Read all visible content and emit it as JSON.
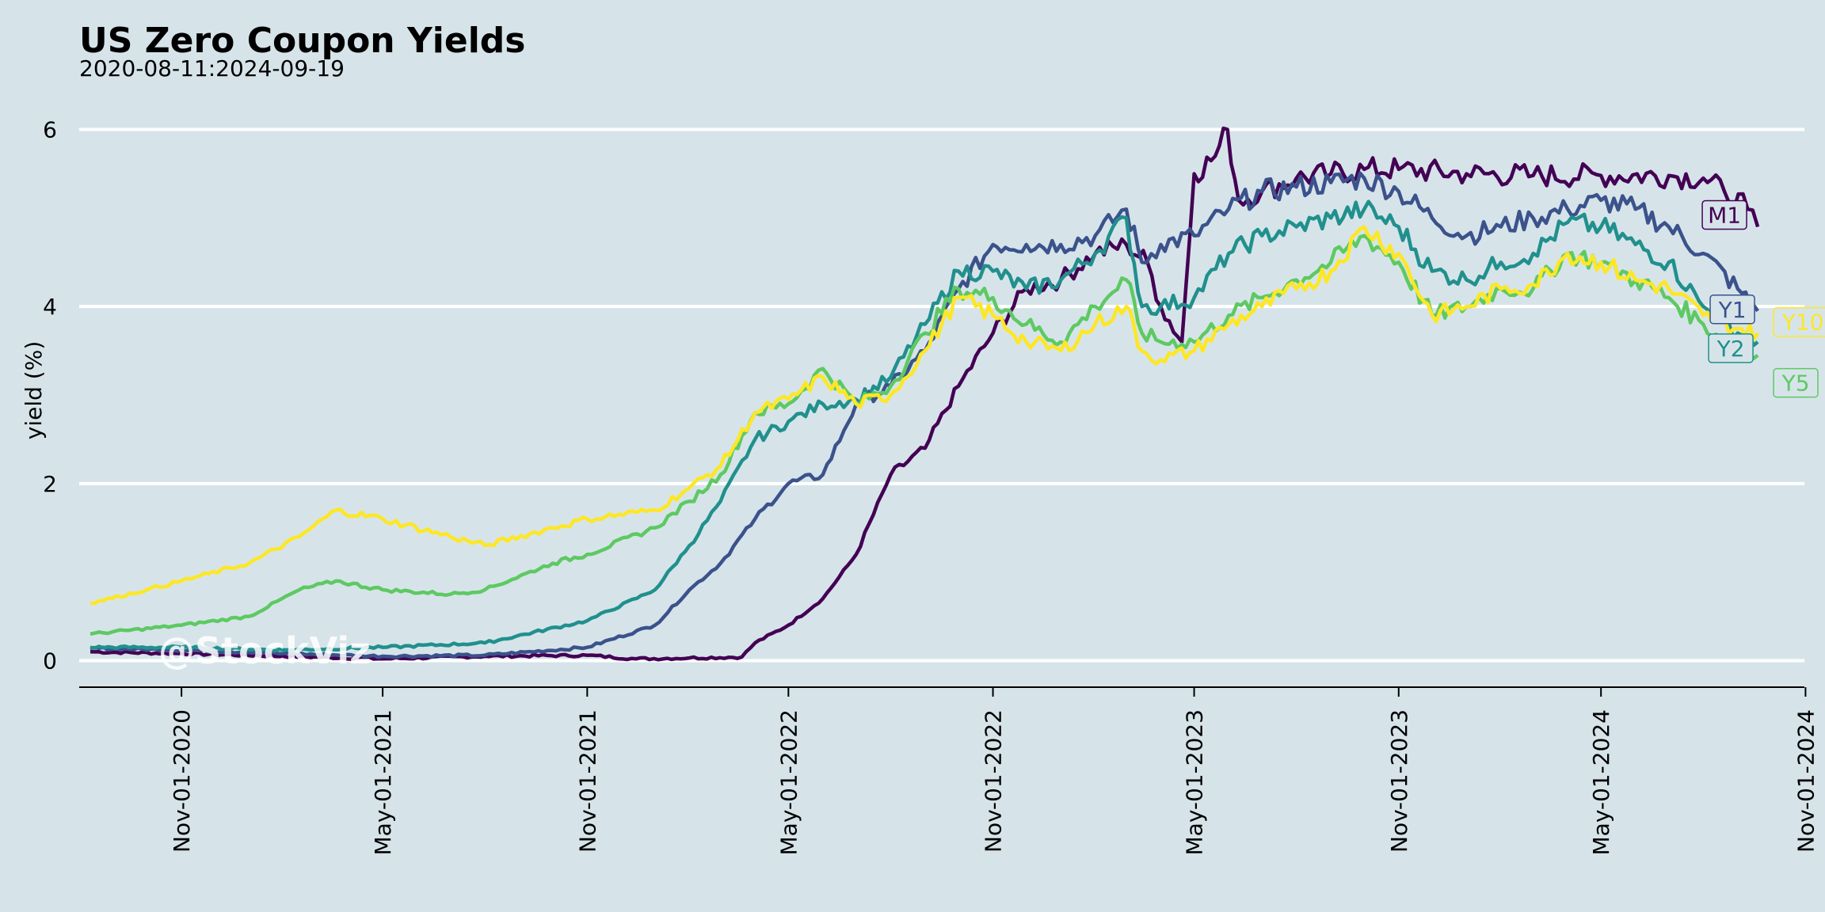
{
  "chart_data": {
    "type": "line",
    "title": "US Zero Coupon Yields",
    "subtitle": "2020-08-11:2024-09-19",
    "ylabel": "yield (%)",
    "xlabel": "",
    "ylim": [
      -0.3,
      6.3
    ],
    "xlim": [
      "2020-08-01",
      "2024-10-31"
    ],
    "grid": "horizontal",
    "watermark": "@StockViz",
    "x_ticks": [
      "Nov-01-2020",
      "May-01-2021",
      "Nov-01-2021",
      "May-01-2022",
      "Nov-01-2022",
      "May-01-2023",
      "Nov-01-2023",
      "May-01-2024",
      "Nov-01-2024"
    ],
    "y_ticks": [
      0,
      2,
      4,
      6
    ],
    "series": [
      {
        "name": "M1",
        "color": "#440154",
        "points": [
          [
            "2020-08-11",
            0.1
          ],
          [
            "2020-11-01",
            0.08
          ],
          [
            "2021-02-01",
            0.05
          ],
          [
            "2021-05-01",
            0.02
          ],
          [
            "2021-08-01",
            0.05
          ],
          [
            "2021-11-01",
            0.06
          ],
          [
            "2021-12-15",
            0.02
          ],
          [
            "2022-02-01",
            0.03
          ],
          [
            "2022-03-20",
            0.04
          ],
          [
            "2022-04-01",
            0.2
          ],
          [
            "2022-05-01",
            0.4
          ],
          [
            "2022-06-01",
            0.7
          ],
          [
            "2022-07-01",
            1.2
          ],
          [
            "2022-08-01",
            2.1
          ],
          [
            "2022-09-01",
            2.4
          ],
          [
            "2022-10-01",
            3.1
          ],
          [
            "2022-11-01",
            3.7
          ],
          [
            "2022-12-01",
            4.2
          ],
          [
            "2023-01-01",
            4.3
          ],
          [
            "2023-02-01",
            4.6
          ],
          [
            "2023-03-01",
            4.7
          ],
          [
            "2023-03-20",
            4.5
          ],
          [
            "2023-04-01",
            4.0
          ],
          [
            "2023-04-20",
            3.6
          ],
          [
            "2023-05-01",
            5.5
          ],
          [
            "2023-05-20",
            5.7
          ],
          [
            "2023-05-31",
            6.0
          ],
          [
            "2023-06-10",
            5.2
          ],
          [
            "2023-07-01",
            5.3
          ],
          [
            "2023-08-01",
            5.45
          ],
          [
            "2023-09-01",
            5.5
          ],
          [
            "2023-10-01",
            5.55
          ],
          [
            "2023-11-01",
            5.55
          ],
          [
            "2024-01-01",
            5.5
          ],
          [
            "2024-03-01",
            5.48
          ],
          [
            "2024-05-01",
            5.48
          ],
          [
            "2024-07-01",
            5.48
          ],
          [
            "2024-08-01",
            5.45
          ],
          [
            "2024-08-20",
            5.3
          ],
          [
            "2024-09-10",
            5.1
          ],
          [
            "2024-09-19",
            4.9
          ]
        ]
      },
      {
        "name": "Y1",
        "color": "#3b528b",
        "points": [
          [
            "2020-08-11",
            0.14
          ],
          [
            "2020-11-01",
            0.12
          ],
          [
            "2021-02-01",
            0.08
          ],
          [
            "2021-05-01",
            0.05
          ],
          [
            "2021-08-01",
            0.06
          ],
          [
            "2021-11-01",
            0.15
          ],
          [
            "2022-01-01",
            0.4
          ],
          [
            "2022-02-01",
            0.8
          ],
          [
            "2022-03-01",
            1.1
          ],
          [
            "2022-04-01",
            1.6
          ],
          [
            "2022-05-01",
            2.0
          ],
          [
            "2022-06-01",
            2.1
          ],
          [
            "2022-06-20",
            2.6
          ],
          [
            "2022-07-01",
            2.9
          ],
          [
            "2022-08-01",
            3.1
          ],
          [
            "2022-09-01",
            3.5
          ],
          [
            "2022-10-01",
            4.2
          ],
          [
            "2022-11-01",
            4.7
          ],
          [
            "2022-12-01",
            4.7
          ],
          [
            "2023-01-01",
            4.7
          ],
          [
            "2023-02-01",
            4.8
          ],
          [
            "2023-03-01",
            5.1
          ],
          [
            "2023-03-15",
            4.5
          ],
          [
            "2023-04-01",
            4.7
          ],
          [
            "2023-05-01",
            4.8
          ],
          [
            "2023-06-01",
            5.1
          ],
          [
            "2023-07-01",
            5.3
          ],
          [
            "2023-08-01",
            5.35
          ],
          [
            "2023-09-01",
            5.4
          ],
          [
            "2023-10-01",
            5.45
          ],
          [
            "2023-11-01",
            5.3
          ],
          [
            "2023-12-01",
            5.0
          ],
          [
            "2024-01-01",
            4.8
          ],
          [
            "2024-02-01",
            4.9
          ],
          [
            "2024-03-01",
            5.0
          ],
          [
            "2024-04-01",
            5.1
          ],
          [
            "2024-05-01",
            5.2
          ],
          [
            "2024-06-01",
            5.1
          ],
          [
            "2024-07-01",
            4.9
          ],
          [
            "2024-08-01",
            4.6
          ],
          [
            "2024-09-01",
            4.2
          ],
          [
            "2024-09-19",
            3.95
          ]
        ]
      },
      {
        "name": "Y2",
        "color": "#21908d",
        "points": [
          [
            "2020-08-11",
            0.15
          ],
          [
            "2020-11-01",
            0.15
          ],
          [
            "2021-02-01",
            0.12
          ],
          [
            "2021-05-01",
            0.15
          ],
          [
            "2021-08-01",
            0.2
          ],
          [
            "2021-11-01",
            0.45
          ],
          [
            "2022-01-01",
            0.8
          ],
          [
            "2022-02-01",
            1.3
          ],
          [
            "2022-03-01",
            1.8
          ],
          [
            "2022-04-01",
            2.5
          ],
          [
            "2022-05-01",
            2.7
          ],
          [
            "2022-06-01",
            2.9
          ],
          [
            "2022-07-01",
            2.95
          ],
          [
            "2022-08-01",
            3.2
          ],
          [
            "2022-09-01",
            3.8
          ],
          [
            "2022-10-01",
            4.4
          ],
          [
            "2022-11-01",
            4.4
          ],
          [
            "2022-12-01",
            4.2
          ],
          [
            "2023-01-01",
            4.3
          ],
          [
            "2023-02-01",
            4.6
          ],
          [
            "2023-03-01",
            5.0
          ],
          [
            "2023-03-15",
            4.0
          ],
          [
            "2023-04-01",
            4.0
          ],
          [
            "2023-05-01",
            4.1
          ],
          [
            "2023-06-01",
            4.6
          ],
          [
            "2023-07-01",
            4.8
          ],
          [
            "2023-08-01",
            4.9
          ],
          [
            "2023-09-01",
            5.0
          ],
          [
            "2023-10-01",
            5.1
          ],
          [
            "2023-11-01",
            4.9
          ],
          [
            "2023-12-01",
            4.4
          ],
          [
            "2024-01-01",
            4.3
          ],
          [
            "2024-02-01",
            4.5
          ],
          [
            "2024-03-01",
            4.6
          ],
          [
            "2024-04-01",
            4.95
          ],
          [
            "2024-05-01",
            4.9
          ],
          [
            "2024-06-01",
            4.7
          ],
          [
            "2024-07-01",
            4.5
          ],
          [
            "2024-08-01",
            4.0
          ],
          [
            "2024-09-01",
            3.7
          ],
          [
            "2024-09-19",
            3.6
          ]
        ]
      },
      {
        "name": "Y5",
        "color": "#5ec962",
        "points": [
          [
            "2020-08-11",
            0.3
          ],
          [
            "2020-11-01",
            0.4
          ],
          [
            "2021-01-01",
            0.5
          ],
          [
            "2021-02-15",
            0.8
          ],
          [
            "2021-03-20",
            0.9
          ],
          [
            "2021-05-01",
            0.8
          ],
          [
            "2021-07-01",
            0.75
          ],
          [
            "2021-08-01",
            0.8
          ],
          [
            "2021-10-01",
            1.1
          ],
          [
            "2021-11-01",
            1.2
          ],
          [
            "2022-01-01",
            1.5
          ],
          [
            "2022-02-01",
            1.8
          ],
          [
            "2022-03-01",
            2.1
          ],
          [
            "2022-04-01",
            2.8
          ],
          [
            "2022-05-01",
            2.9
          ],
          [
            "2022-06-01",
            3.3
          ],
          [
            "2022-07-01",
            2.9
          ],
          [
            "2022-08-01",
            3.1
          ],
          [
            "2022-09-01",
            3.7
          ],
          [
            "2022-10-01",
            4.2
          ],
          [
            "2022-11-01",
            4.1
          ],
          [
            "2022-12-01",
            3.8
          ],
          [
            "2023-01-01",
            3.6
          ],
          [
            "2023-02-01",
            4.0
          ],
          [
            "2023-03-01",
            4.3
          ],
          [
            "2023-03-15",
            3.7
          ],
          [
            "2023-04-01",
            3.6
          ],
          [
            "2023-05-01",
            3.6
          ],
          [
            "2023-06-01",
            3.9
          ],
          [
            "2023-07-01",
            4.1
          ],
          [
            "2023-08-01",
            4.3
          ],
          [
            "2023-09-01",
            4.5
          ],
          [
            "2023-10-01",
            4.8
          ],
          [
            "2023-11-01",
            4.5
          ],
          [
            "2023-12-01",
            3.9
          ],
          [
            "2024-01-01",
            4.0
          ],
          [
            "2024-02-01",
            4.2
          ],
          [
            "2024-03-01",
            4.2
          ],
          [
            "2024-04-01",
            4.6
          ],
          [
            "2024-05-01",
            4.5
          ],
          [
            "2024-06-01",
            4.3
          ],
          [
            "2024-07-01",
            4.1
          ],
          [
            "2024-08-01",
            3.8
          ],
          [
            "2024-09-01",
            3.5
          ],
          [
            "2024-09-19",
            3.45
          ]
        ]
      },
      {
        "name": "Y10",
        "color": "#fde725",
        "points": [
          [
            "2020-08-11",
            0.65
          ],
          [
            "2020-10-01",
            0.8
          ],
          [
            "2020-11-01",
            0.9
          ],
          [
            "2021-01-01",
            1.1
          ],
          [
            "2021-02-15",
            1.4
          ],
          [
            "2021-03-20",
            1.7
          ],
          [
            "2021-05-01",
            1.6
          ],
          [
            "2021-07-01",
            1.4
          ],
          [
            "2021-08-01",
            1.3
          ],
          [
            "2021-10-01",
            1.5
          ],
          [
            "2021-11-01",
            1.6
          ],
          [
            "2022-01-01",
            1.7
          ],
          [
            "2022-02-01",
            1.95
          ],
          [
            "2022-03-01",
            2.2
          ],
          [
            "2022-04-01",
            2.8
          ],
          [
            "2022-05-01",
            2.95
          ],
          [
            "2022-06-01",
            3.2
          ],
          [
            "2022-07-01",
            2.9
          ],
          [
            "2022-08-01",
            3.0
          ],
          [
            "2022-09-01",
            3.5
          ],
          [
            "2022-10-01",
            4.1
          ],
          [
            "2022-11-01",
            3.9
          ],
          [
            "2022-12-01",
            3.6
          ],
          [
            "2023-01-01",
            3.5
          ],
          [
            "2023-02-01",
            3.8
          ],
          [
            "2023-03-01",
            4.0
          ],
          [
            "2023-03-15",
            3.5
          ],
          [
            "2023-04-01",
            3.4
          ],
          [
            "2023-05-01",
            3.5
          ],
          [
            "2023-06-01",
            3.8
          ],
          [
            "2023-07-01",
            4.0
          ],
          [
            "2023-08-01",
            4.2
          ],
          [
            "2023-09-01",
            4.4
          ],
          [
            "2023-10-01",
            4.9
          ],
          [
            "2023-11-01",
            4.6
          ],
          [
            "2023-12-01",
            3.9
          ],
          [
            "2024-01-01",
            4.0
          ],
          [
            "2024-02-01",
            4.2
          ],
          [
            "2024-03-01",
            4.25
          ],
          [
            "2024-04-01",
            4.6
          ],
          [
            "2024-05-01",
            4.5
          ],
          [
            "2024-06-01",
            4.3
          ],
          [
            "2024-07-01",
            4.2
          ],
          [
            "2024-08-01",
            3.9
          ],
          [
            "2024-09-01",
            3.75
          ],
          [
            "2024-09-19",
            3.7
          ]
        ]
      }
    ]
  }
}
